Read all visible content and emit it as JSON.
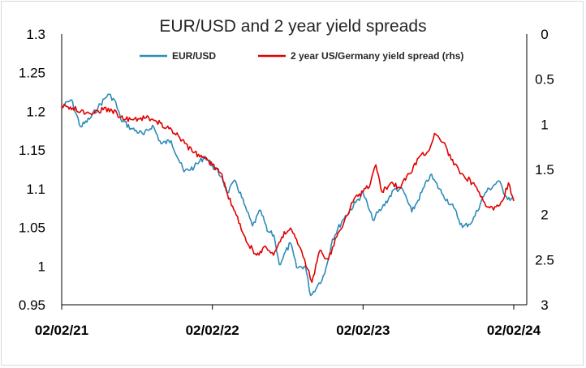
{
  "chart_data": {
    "type": "line",
    "title": "EUR/USD and 2 year yield spreads",
    "x_ticks": [
      "02/02/21",
      "02/02/22",
      "02/02/23",
      "02/02/24"
    ],
    "y_left": {
      "min": 0.95,
      "max": 1.3,
      "ticks": [
        "1.3",
        "1.25",
        "1.2",
        "1.15",
        "1.1",
        "1.05",
        "1",
        "0.95"
      ]
    },
    "y_right": {
      "min": 0,
      "max": 3,
      "inverted": true,
      "ticks": [
        "0",
        "0.5",
        "1",
        "1.5",
        "2",
        "2.5",
        "3"
      ]
    },
    "legend_position": "top",
    "series": [
      {
        "name": "EUR/USD",
        "axis": "left",
        "color": "#2e8bb8",
        "points": [
          [
            "2021-02-02",
            1.205
          ],
          [
            "2021-02-25",
            1.215
          ],
          [
            "2021-03-20",
            1.18
          ],
          [
            "2021-04-10",
            1.19
          ],
          [
            "2021-05-01",
            1.205
          ],
          [
            "2021-05-25",
            1.222
          ],
          [
            "2021-06-10",
            1.215
          ],
          [
            "2021-06-25",
            1.19
          ],
          [
            "2021-07-20",
            1.178
          ],
          [
            "2021-08-20",
            1.17
          ],
          [
            "2021-09-10",
            1.182
          ],
          [
            "2021-10-01",
            1.158
          ],
          [
            "2021-10-25",
            1.162
          ],
          [
            "2021-11-25",
            1.122
          ],
          [
            "2021-12-20",
            1.128
          ],
          [
            "2022-01-15",
            1.142
          ],
          [
            "2022-02-02",
            1.13
          ],
          [
            "2022-02-25",
            1.115
          ],
          [
            "2022-03-10",
            1.095
          ],
          [
            "2022-03-30",
            1.11
          ],
          [
            "2022-04-20",
            1.08
          ],
          [
            "2022-05-10",
            1.052
          ],
          [
            "2022-05-30",
            1.072
          ],
          [
            "2022-06-15",
            1.045
          ],
          [
            "2022-07-01",
            1.04
          ],
          [
            "2022-07-14",
            1.002
          ],
          [
            "2022-08-10",
            1.03
          ],
          [
            "2022-08-25",
            0.998
          ],
          [
            "2022-09-15",
            1.0
          ],
          [
            "2022-09-28",
            0.962
          ],
          [
            "2022-10-15",
            0.975
          ],
          [
            "2022-11-01",
            0.99
          ],
          [
            "2022-11-20",
            1.035
          ],
          [
            "2022-12-15",
            1.06
          ],
          [
            "2023-01-15",
            1.082
          ],
          [
            "2023-02-02",
            1.095
          ],
          [
            "2023-02-25",
            1.06
          ],
          [
            "2023-03-20",
            1.075
          ],
          [
            "2023-04-20",
            1.1
          ],
          [
            "2023-05-10",
            1.098
          ],
          [
            "2023-05-31",
            1.07
          ],
          [
            "2023-06-15",
            1.085
          ],
          [
            "2023-07-15",
            1.118
          ],
          [
            "2023-08-15",
            1.092
          ],
          [
            "2023-09-10",
            1.075
          ],
          [
            "2023-10-01",
            1.05
          ],
          [
            "2023-10-25",
            1.058
          ],
          [
            "2023-11-25",
            1.095
          ],
          [
            "2023-12-27",
            1.11
          ],
          [
            "2024-01-15",
            1.09
          ],
          [
            "2024-02-02",
            1.085
          ]
        ]
      },
      {
        "name": "2 year US/Germany yield spread (rhs)",
        "axis": "right",
        "color": "#e00000",
        "points": [
          [
            "2021-02-02",
            0.8
          ],
          [
            "2021-03-01",
            0.82
          ],
          [
            "2021-04-01",
            0.88
          ],
          [
            "2021-05-01",
            0.85
          ],
          [
            "2021-06-01",
            0.83
          ],
          [
            "2021-06-25",
            0.92
          ],
          [
            "2021-07-25",
            0.95
          ],
          [
            "2021-08-25",
            0.93
          ],
          [
            "2021-09-20",
            0.97
          ],
          [
            "2021-10-20",
            1.05
          ],
          [
            "2021-11-15",
            1.15
          ],
          [
            "2021-12-15",
            1.3
          ],
          [
            "2022-01-15",
            1.38
          ],
          [
            "2022-02-02",
            1.45
          ],
          [
            "2022-02-25",
            1.55
          ],
          [
            "2022-03-20",
            1.9
          ],
          [
            "2022-04-10",
            2.1
          ],
          [
            "2022-04-25",
            2.3
          ],
          [
            "2022-05-20",
            2.45
          ],
          [
            "2022-06-10",
            2.35
          ],
          [
            "2022-06-30",
            2.45
          ],
          [
            "2022-07-20",
            2.25
          ],
          [
            "2022-08-10",
            2.15
          ],
          [
            "2022-08-31",
            2.35
          ],
          [
            "2022-09-20",
            2.6
          ],
          [
            "2022-10-01",
            2.75
          ],
          [
            "2022-10-20",
            2.4
          ],
          [
            "2022-11-10",
            2.5
          ],
          [
            "2022-11-30",
            2.25
          ],
          [
            "2022-12-20",
            2.05
          ],
          [
            "2023-01-15",
            1.8
          ],
          [
            "2023-02-02",
            1.75
          ],
          [
            "2023-02-20",
            1.65
          ],
          [
            "2023-03-05",
            1.45
          ],
          [
            "2023-03-20",
            1.75
          ],
          [
            "2023-04-10",
            1.65
          ],
          [
            "2023-05-01",
            1.7
          ],
          [
            "2023-05-25",
            1.55
          ],
          [
            "2023-06-20",
            1.35
          ],
          [
            "2023-07-10",
            1.3
          ],
          [
            "2023-07-25",
            1.1
          ],
          [
            "2023-08-15",
            1.2
          ],
          [
            "2023-09-10",
            1.45
          ],
          [
            "2023-10-01",
            1.55
          ],
          [
            "2023-10-25",
            1.65
          ],
          [
            "2023-11-20",
            1.85
          ],
          [
            "2023-12-15",
            1.95
          ],
          [
            "2024-01-05",
            1.85
          ],
          [
            "2024-01-20",
            1.65
          ],
          [
            "2024-02-02",
            1.85
          ]
        ]
      }
    ]
  }
}
